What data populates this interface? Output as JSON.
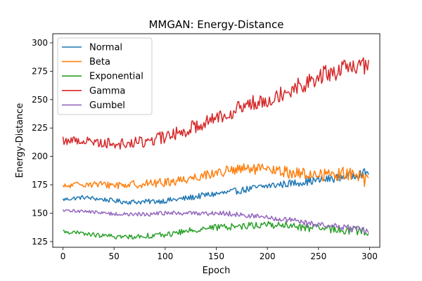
{
  "chart_data": {
    "type": "line",
    "title": "MMGAN: Energy-Distance",
    "xlabel": "Epoch",
    "ylabel": "Energy-Distance",
    "xlim": [
      -10,
      310
    ],
    "ylim": [
      120,
      308
    ],
    "xticks": [
      0,
      50,
      100,
      150,
      200,
      250,
      300
    ],
    "yticks": [
      125,
      150,
      175,
      200,
      225,
      250,
      275,
      300
    ],
    "grid": false,
    "legend_position": "top-left",
    "x": {
      "start": 0,
      "end": 299,
      "step": 1
    },
    "series": [
      {
        "name": "Normal",
        "color": "#1f77b4",
        "noise": 2.8,
        "anchors": [
          [
            0,
            162
          ],
          [
            20,
            164
          ],
          [
            40,
            162
          ],
          [
            60,
            160
          ],
          [
            80,
            160
          ],
          [
            100,
            161
          ],
          [
            120,
            163
          ],
          [
            140,
            166
          ],
          [
            160,
            168
          ],
          [
            180,
            171
          ],
          [
            200,
            174
          ],
          [
            220,
            176
          ],
          [
            240,
            178
          ],
          [
            260,
            180
          ],
          [
            280,
            183
          ],
          [
            299,
            186
          ]
        ]
      },
      {
        "name": "Beta",
        "color": "#ff7f0e",
        "noise": 4.5,
        "anchors": [
          [
            0,
            173
          ],
          [
            20,
            176
          ],
          [
            40,
            175
          ],
          [
            60,
            175
          ],
          [
            80,
            176
          ],
          [
            100,
            177
          ],
          [
            120,
            180
          ],
          [
            140,
            184
          ],
          [
            160,
            187
          ],
          [
            180,
            189
          ],
          [
            200,
            188
          ],
          [
            220,
            186
          ],
          [
            240,
            184
          ],
          [
            260,
            184
          ],
          [
            280,
            185
          ],
          [
            299,
            178
          ]
        ]
      },
      {
        "name": "Exponential",
        "color": "#2ca02c",
        "noise": 2.8,
        "anchors": [
          [
            0,
            134
          ],
          [
            20,
            132
          ],
          [
            40,
            130
          ],
          [
            60,
            129
          ],
          [
            80,
            130
          ],
          [
            100,
            131
          ],
          [
            120,
            134
          ],
          [
            140,
            137
          ],
          [
            160,
            138
          ],
          [
            180,
            139
          ],
          [
            200,
            140
          ],
          [
            220,
            139
          ],
          [
            240,
            137
          ],
          [
            260,
            136
          ],
          [
            280,
            135
          ],
          [
            299,
            134
          ]
        ]
      },
      {
        "name": "Gamma",
        "color": "#d62728",
        "noise": 6.5,
        "anchors": [
          [
            0,
            214
          ],
          [
            20,
            214
          ],
          [
            40,
            212
          ],
          [
            60,
            211
          ],
          [
            80,
            213
          ],
          [
            100,
            217
          ],
          [
            120,
            223
          ],
          [
            140,
            231
          ],
          [
            160,
            238
          ],
          [
            180,
            245
          ],
          [
            200,
            251
          ],
          [
            220,
            258
          ],
          [
            240,
            266
          ],
          [
            260,
            273
          ],
          [
            280,
            278
          ],
          [
            299,
            280
          ]
        ]
      },
      {
        "name": "Gumbel",
        "color": "#9467bd",
        "noise": 2.2,
        "anchors": [
          [
            0,
            152
          ],
          [
            20,
            152
          ],
          [
            40,
            150
          ],
          [
            60,
            149
          ],
          [
            80,
            149
          ],
          [
            100,
            150
          ],
          [
            120,
            150
          ],
          [
            140,
            150
          ],
          [
            160,
            150
          ],
          [
            180,
            148
          ],
          [
            200,
            146
          ],
          [
            220,
            144
          ],
          [
            240,
            141
          ],
          [
            260,
            139
          ],
          [
            280,
            137
          ],
          [
            299,
            134
          ]
        ]
      }
    ]
  }
}
